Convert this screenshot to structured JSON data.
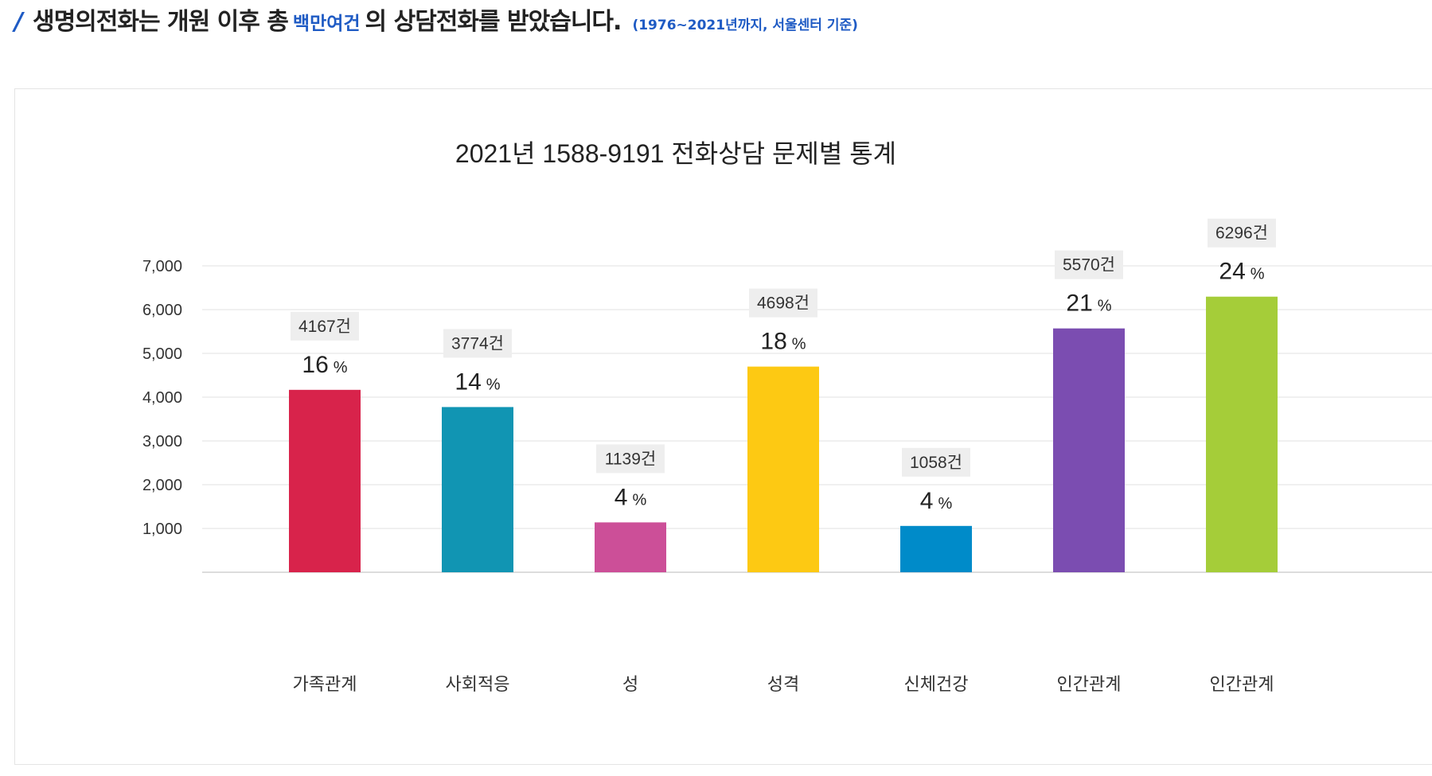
{
  "headline": {
    "pre": "생명의전화는 개원 이후 총",
    "highlight": "백만여건",
    "post": "의 상담전화를 받았습니다.",
    "note": "(1976~2021년까지, 서울센터 기준)"
  },
  "chart_data": {
    "type": "bar",
    "title": "2021년 1588-9191 전화상담 문제별 통계",
    "xlabel": "",
    "ylabel": "",
    "ylim": [
      0,
      7000
    ],
    "yticks": [
      1000,
      2000,
      3000,
      4000,
      5000,
      6000,
      7000
    ],
    "ytick_labels": [
      "1,000",
      "2,000",
      "3,000",
      "4,000",
      "5,000",
      "6,000",
      "7,000"
    ],
    "grid": true,
    "categories": [
      "가족관계",
      "사회적응",
      "성",
      "성격",
      "신체건강",
      "인간관계",
      "인간관계"
    ],
    "values": [
      4167,
      3774,
      1139,
      4698,
      1058,
      5570,
      6296
    ],
    "count_labels": [
      "4167건",
      "3774건",
      "1139건",
      "4698건",
      "1058건",
      "5570건",
      "6296건"
    ],
    "percent_numbers": [
      "16",
      "14",
      "4",
      "18",
      "4",
      "21",
      "24"
    ],
    "percent_sign": "%",
    "colors": [
      "#d8234b",
      "#1195b3",
      "#cc4f98",
      "#fdc913",
      "#008bc9",
      "#7b4db1",
      "#a5cd39"
    ]
  },
  "colors": {
    "accent": "#1f5bc4",
    "grid": "#e0e0e0",
    "label_bg": "#eeeeee"
  }
}
